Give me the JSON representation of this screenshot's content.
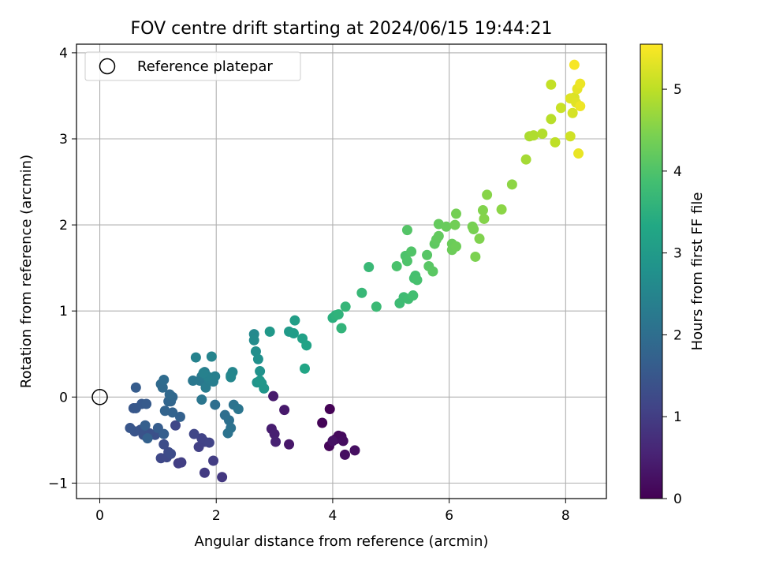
{
  "chart_data": {
    "type": "scatter",
    "title": "FOV centre drift starting at 2024/06/15 19:44:21",
    "xlabel": "Angular distance from reference (arcmin)",
    "ylabel": "Rotation from reference (arcmin)",
    "xlim": [
      -0.4,
      8.7
    ],
    "ylim": [
      -1.18,
      4.1
    ],
    "xticks": [
      "0",
      "2",
      "4",
      "6",
      "8"
    ],
    "yticks": [
      "−1",
      "0",
      "1",
      "2",
      "3",
      "4"
    ],
    "grid": true,
    "legend": {
      "position": "top-left",
      "entries": [
        "Reference platepar"
      ]
    },
    "reference_point": {
      "x": 0,
      "y": 0
    },
    "colorbar": {
      "label": "Hours from first FF file",
      "range": [
        0,
        5.55
      ],
      "ticks": [
        "0",
        "1",
        "2",
        "3",
        "4",
        "5"
      ],
      "colormap": "viridis"
    },
    "points": [
      [
        3.95,
        -0.14,
        0.02
      ],
      [
        3.82,
        -0.3,
        0.05
      ],
      [
        3.94,
        -0.57,
        0.08
      ],
      [
        4.05,
        -0.49,
        0.1
      ],
      [
        4.1,
        -0.45,
        0.12
      ],
      [
        4.15,
        -0.46,
        0.15
      ],
      [
        4.18,
        -0.51,
        0.18
      ],
      [
        4.21,
        -0.67,
        0.2
      ],
      [
        4.38,
        -0.62,
        0.22
      ],
      [
        4.0,
        -0.51,
        0.25
      ],
      [
        3.25,
        -0.55,
        0.35
      ],
      [
        3.17,
        -0.15,
        0.38
      ],
      [
        2.98,
        0.01,
        0.4
      ],
      [
        2.95,
        -0.37,
        0.45
      ],
      [
        3.0,
        -0.43,
        0.48
      ],
      [
        3.02,
        -0.52,
        0.52
      ],
      [
        2.1,
        -0.93,
        0.9
      ],
      [
        1.8,
        -0.88,
        0.95
      ],
      [
        1.95,
        -0.74,
        0.98
      ],
      [
        1.35,
        -0.77,
        1.0
      ],
      [
        1.4,
        -0.76,
        1.02
      ],
      [
        1.7,
        -0.58,
        1.05
      ],
      [
        1.8,
        -0.52,
        1.08
      ],
      [
        1.75,
        -0.48,
        1.1
      ],
      [
        1.88,
        -0.53,
        1.12
      ],
      [
        1.62,
        -0.43,
        1.15
      ],
      [
        1.3,
        -0.33,
        1.18
      ],
      [
        1.05,
        -0.71,
        1.2
      ],
      [
        1.15,
        -0.7,
        1.22
      ],
      [
        1.18,
        -0.64,
        1.25
      ],
      [
        1.22,
        -0.66,
        1.28
      ],
      [
        1.1,
        -0.55,
        1.3
      ],
      [
        1.0,
        -0.4,
        1.32
      ],
      [
        0.95,
        -0.44,
        1.35
      ],
      [
        0.85,
        -0.42,
        1.38
      ],
      [
        0.75,
        -0.44,
        1.4
      ],
      [
        0.7,
        -0.38,
        1.42
      ],
      [
        0.6,
        -0.4,
        1.45
      ],
      [
        0.52,
        -0.36,
        1.48
      ],
      [
        0.58,
        -0.13,
        1.5
      ],
      [
        0.62,
        -0.13,
        1.52
      ],
      [
        0.72,
        -0.08,
        1.55
      ],
      [
        0.8,
        -0.08,
        1.58
      ],
      [
        0.62,
        0.11,
        1.6
      ],
      [
        1.0,
        -0.36,
        1.62
      ],
      [
        1.1,
        -0.43,
        1.65
      ],
      [
        0.78,
        -0.33,
        1.68
      ],
      [
        0.82,
        -0.48,
        1.7
      ],
      [
        1.38,
        -0.23,
        1.72
      ],
      [
        1.25,
        -0.18,
        1.75
      ],
      [
        1.12,
        -0.16,
        1.78
      ],
      [
        1.18,
        -0.05,
        1.8
      ],
      [
        1.22,
        -0.05,
        1.82
      ],
      [
        1.25,
        0.0,
        1.85
      ],
      [
        1.2,
        0.03,
        1.88
      ],
      [
        1.08,
        0.11,
        1.9
      ],
      [
        1.05,
        0.15,
        1.92
      ],
      [
        1.1,
        0.2,
        1.95
      ],
      [
        1.98,
        -0.09,
        2.0
      ],
      [
        2.15,
        -0.21,
        2.02
      ],
      [
        2.22,
        -0.27,
        2.05
      ],
      [
        2.25,
        -0.36,
        2.08
      ],
      [
        2.2,
        -0.42,
        2.1
      ],
      [
        2.3,
        -0.09,
        2.12
      ],
      [
        2.38,
        -0.14,
        2.15
      ],
      [
        1.75,
        -0.03,
        2.18
      ],
      [
        1.6,
        0.19,
        2.2
      ],
      [
        1.72,
        0.19,
        2.22
      ],
      [
        1.75,
        0.24,
        2.25
      ],
      [
        1.8,
        0.29,
        2.28
      ],
      [
        1.82,
        0.11,
        2.3
      ],
      [
        1.88,
        0.19,
        2.32
      ],
      [
        1.95,
        0.18,
        2.35
      ],
      [
        1.98,
        0.24,
        2.38
      ],
      [
        1.85,
        0.24,
        2.4
      ],
      [
        1.78,
        0.28,
        2.42
      ],
      [
        1.65,
        0.46,
        2.45
      ],
      [
        1.92,
        0.47,
        2.48
      ],
      [
        2.25,
        0.25,
        2.5
      ],
      [
        2.28,
        0.29,
        2.52
      ],
      [
        2.25,
        0.23,
        2.55
      ],
      [
        2.65,
        0.73,
        2.6
      ],
      [
        2.65,
        0.66,
        2.65
      ],
      [
        2.68,
        0.53,
        2.7
      ],
      [
        2.72,
        0.44,
        2.75
      ],
      [
        2.75,
        0.3,
        2.8
      ],
      [
        2.7,
        0.17,
        2.85
      ],
      [
        2.78,
        0.16,
        2.88
      ],
      [
        2.82,
        0.1,
        2.9
      ],
      [
        2.75,
        0.19,
        2.92
      ],
      [
        2.92,
        0.76,
        2.95
      ],
      [
        3.25,
        0.76,
        3.0
      ],
      [
        3.33,
        0.74,
        3.05
      ],
      [
        3.35,
        0.89,
        3.1
      ],
      [
        3.48,
        0.68,
        3.15
      ],
      [
        3.55,
        0.6,
        3.2
      ],
      [
        3.52,
        0.33,
        3.25
      ],
      [
        4.0,
        0.92,
        3.5
      ],
      [
        4.05,
        0.95,
        3.55
      ],
      [
        4.1,
        0.96,
        3.58
      ],
      [
        4.15,
        0.8,
        3.6
      ],
      [
        4.22,
        1.05,
        3.65
      ],
      [
        4.5,
        1.21,
        3.7
      ],
      [
        4.62,
        1.51,
        3.72
      ],
      [
        4.75,
        1.05,
        3.75
      ],
      [
        5.15,
        1.09,
        3.78
      ],
      [
        5.22,
        1.16,
        3.8
      ],
      [
        5.3,
        1.14,
        3.82
      ],
      [
        5.38,
        1.18,
        3.85
      ],
      [
        5.4,
        1.38,
        3.88
      ],
      [
        5.42,
        1.41,
        3.9
      ],
      [
        5.45,
        1.36,
        3.92
      ],
      [
        5.1,
        1.52,
        3.95
      ],
      [
        5.25,
        1.64,
        3.98
      ],
      [
        5.28,
        1.58,
        4.0
      ],
      [
        5.35,
        1.69,
        4.02
      ],
      [
        5.28,
        1.94,
        4.05
      ],
      [
        5.62,
        1.65,
        4.08
      ],
      [
        5.65,
        1.52,
        4.1
      ],
      [
        5.72,
        1.46,
        4.12
      ],
      [
        5.75,
        1.78,
        4.15
      ],
      [
        5.78,
        1.83,
        4.18
      ],
      [
        5.82,
        1.87,
        4.2
      ],
      [
        5.82,
        2.01,
        4.22
      ],
      [
        5.95,
        1.98,
        4.25
      ],
      [
        6.05,
        1.78,
        4.28
      ],
      [
        6.05,
        1.71,
        4.3
      ],
      [
        6.12,
        1.75,
        4.32
      ],
      [
        6.1,
        2.0,
        4.35
      ],
      [
        6.12,
        2.13,
        4.38
      ],
      [
        6.4,
        1.98,
        4.4
      ],
      [
        6.42,
        1.95,
        4.42
      ],
      [
        6.45,
        1.63,
        4.45
      ],
      [
        6.52,
        1.84,
        4.48
      ],
      [
        6.58,
        2.17,
        4.5
      ],
      [
        6.6,
        2.07,
        4.52
      ],
      [
        6.65,
        2.35,
        4.55
      ],
      [
        6.9,
        2.18,
        4.58
      ],
      [
        7.08,
        2.47,
        4.6
      ],
      [
        7.32,
        2.76,
        4.8
      ],
      [
        7.38,
        3.03,
        4.85
      ],
      [
        7.45,
        3.04,
        4.88
      ],
      [
        7.6,
        3.06,
        4.9
      ],
      [
        7.75,
        3.23,
        4.95
      ],
      [
        7.82,
        2.96,
        5.0
      ],
      [
        7.75,
        3.63,
        5.05
      ],
      [
        7.92,
        3.36,
        5.1
      ],
      [
        8.08,
        3.03,
        5.15
      ],
      [
        8.12,
        3.3,
        5.2
      ],
      [
        8.15,
        3.48,
        5.25
      ],
      [
        8.08,
        3.47,
        5.28
      ],
      [
        8.18,
        3.42,
        5.3
      ],
      [
        8.2,
        3.58,
        5.35
      ],
      [
        8.22,
        2.83,
        5.38
      ],
      [
        8.25,
        3.64,
        5.4
      ],
      [
        8.25,
        3.38,
        5.42
      ],
      [
        8.15,
        3.86,
        5.5
      ]
    ]
  }
}
